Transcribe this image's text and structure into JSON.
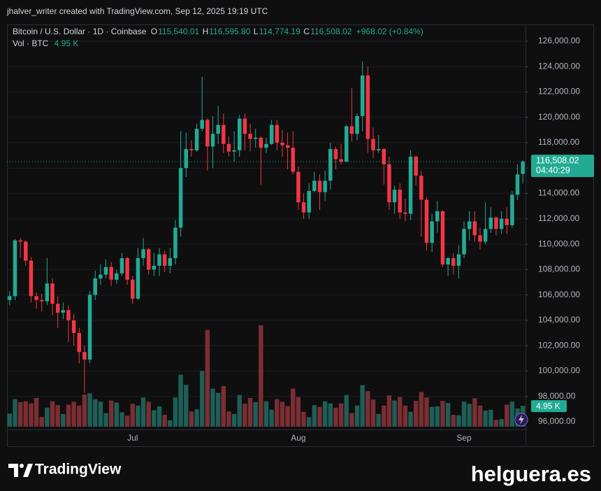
{
  "chart_data": {
    "type": "candlestick",
    "attribution": "jhalver_writer created with TradingView.com, Sep 12, 2025 19:19 UTC",
    "title": "Bitcoin / U.S. Dollar · 1D · Coinbase",
    "ohlc_legend": [
      {
        "key": "O",
        "label": "115,540.01"
      },
      {
        "key": "H",
        "label": "116,595.80"
      },
      {
        "key": "L",
        "label": "114,774.19"
      },
      {
        "key": "C",
        "label": "116,508.02"
      }
    ],
    "change_label": "+968.02 (+0.84%)",
    "countdown": "04:40:29",
    "up_color": "#22ab94",
    "down_color": "#f23645",
    "grid": true,
    "categories": [
      null,
      null,
      null,
      null,
      null,
      null,
      null,
      null,
      null,
      null,
      null,
      null,
      null,
      null,
      null,
      null,
      null,
      null,
      null,
      null,
      null,
      null,
      null,
      "Jul",
      null,
      null,
      null,
      null,
      null,
      null,
      null,
      null,
      null,
      null,
      null,
      null,
      null,
      null,
      null,
      null,
      null,
      null,
      null,
      null,
      null,
      null,
      null,
      null,
      null,
      null,
      null,
      null,
      null,
      null,
      "Aug",
      null,
      null,
      null,
      null,
      null,
      null,
      null,
      null,
      null,
      null,
      null,
      null,
      null,
      null,
      null,
      null,
      null,
      null,
      null,
      null,
      null,
      null,
      null,
      null,
      null,
      null,
      null,
      null,
      null,
      null,
      "Sep",
      null,
      null,
      null,
      null,
      null,
      null,
      null,
      null,
      null,
      null,
      null
    ],
    "open": [
      105600,
      105900,
      110300,
      110200,
      108700,
      105900,
      105600,
      105500,
      106900,
      105300,
      104600,
      104800,
      104000,
      103000,
      101500,
      100900,
      106000,
      107300,
      107600,
      108200,
      107200,
      107700,
      108900,
      107200,
      105700,
      108900,
      109600,
      108000,
      108300,
      109200,
      108300,
      108900,
      111300,
      116000,
      117500,
      117400,
      119100,
      119800,
      117700,
      118700,
      119400,
      117900,
      117300,
      117400,
      119900,
      118700,
      118300,
      118400,
      117600,
      117900,
      119400,
      118000,
      117800,
      117600,
      115700,
      113300,
      112500,
      114200,
      115000,
      114100,
      115000,
      117500,
      116700,
      116500,
      119300,
      118700,
      120100,
      123300,
      118300,
      117400,
      117500,
      116300,
      113300,
      114300,
      112500,
      112400,
      116900,
      115400,
      113500,
      110100,
      111800,
      112600,
      108400,
      108900,
      108300,
      109200,
      111200,
      111800,
      110700,
      110200,
      111200,
      112100,
      111200,
      112000,
      111500,
      113900,
      115540.01
    ],
    "high": [
      106300,
      110400,
      110500,
      110300,
      109000,
      106200,
      106100,
      108900,
      107300,
      105900,
      105400,
      105200,
      104500,
      103400,
      102000,
      106300,
      107900,
      108400,
      108800,
      108600,
      108000,
      109300,
      109000,
      107500,
      109700,
      110500,
      109700,
      109300,
      109700,
      109500,
      109700,
      111900,
      118900,
      118800,
      118200,
      119500,
      123200,
      119900,
      120100,
      120900,
      120300,
      118500,
      118900,
      120200,
      120300,
      119500,
      119100,
      118500,
      118400,
      119800,
      119800,
      119000,
      118800,
      118900,
      116100,
      114000,
      114800,
      115700,
      115500,
      115800,
      118000,
      117700,
      117900,
      119400,
      122300,
      120300,
      124400,
      124000,
      119200,
      118600,
      117600,
      116900,
      114600,
      114800,
      113600,
      117400,
      117000,
      115800,
      113700,
      112400,
      113400,
      112700,
      109000,
      109300,
      109900,
      111800,
      112600,
      112600,
      111300,
      113300,
      112900,
      112200,
      112600,
      112900,
      114200,
      116300,
      116595.8
    ],
    "low": [
      105200,
      105600,
      108900,
      108300,
      105400,
      104900,
      104700,
      105200,
      104400,
      103400,
      104100,
      102300,
      102000,
      100600,
      98300,
      100600,
      105600,
      106800,
      107300,
      106700,
      106900,
      107500,
      106800,
      105300,
      105600,
      108300,
      107600,
      107500,
      107500,
      107800,
      107700,
      108400,
      110600,
      115300,
      116900,
      117300,
      118900,
      115800,
      116000,
      117900,
      117200,
      116900,
      116500,
      116900,
      117400,
      117300,
      117600,
      114700,
      117200,
      117800,
      117400,
      116900,
      115900,
      115500,
      112700,
      112000,
      112000,
      114100,
      112700,
      113400,
      114300,
      115900,
      116300,
      116500,
      118100,
      118200,
      118900,
      117200,
      116800,
      117200,
      114700,
      112700,
      112400,
      112000,
      111800,
      111900,
      114600,
      110600,
      109500,
      109400,
      110900,
      108200,
      107500,
      107600,
      107300,
      108900,
      110300,
      110200,
      109600,
      110000,
      110900,
      110700,
      110800,
      110800,
      111300,
      113500,
      114774.19
    ],
    "close": [
      105900,
      110300,
      110200,
      108700,
      105900,
      105600,
      105500,
      106900,
      105300,
      104600,
      104800,
      104000,
      103000,
      101500,
      100900,
      106000,
      107300,
      107600,
      108200,
      107200,
      107700,
      108900,
      107200,
      105700,
      108900,
      109600,
      108000,
      108300,
      109200,
      108300,
      108900,
      111300,
      116000,
      117500,
      117400,
      119100,
      119800,
      117700,
      118700,
      119400,
      117900,
      117300,
      117400,
      119900,
      118700,
      118300,
      118400,
      117600,
      117900,
      119400,
      118000,
      117800,
      117600,
      115700,
      113300,
      112500,
      114200,
      115000,
      114100,
      115000,
      117500,
      116700,
      116500,
      119300,
      118700,
      120100,
      123300,
      118300,
      117400,
      117500,
      116300,
      113300,
      114300,
      112500,
      112400,
      116900,
      115400,
      113500,
      110100,
      111800,
      112600,
      108400,
      108900,
      108300,
      109200,
      111200,
      111800,
      110700,
      110200,
      111200,
      112100,
      111200,
      112000,
      111500,
      113900,
      115500,
      116508.02
    ],
    "volume": {
      "name": "Vol · BTC",
      "up_color": "#1d5f56",
      "down_color": "#7b2e33",
      "values": [
        3.1,
        6.5,
        5.8,
        6.0,
        5.5,
        6.8,
        2.3,
        4.5,
        6.0,
        5.1,
        3.0,
        5.2,
        5.9,
        5.0,
        7.6,
        7.9,
        6.5,
        5.9,
        3.2,
        6.2,
        5.7,
        3.4,
        2.6,
        5.4,
        5.0,
        6.9,
        5.9,
        3.9,
        4.8,
        2.8,
        1.5,
        6.9,
        12.3,
        9.9,
        3.6,
        4.1,
        13.2,
        22.9,
        9.0,
        8.0,
        9.6,
        3.6,
        3.0,
        7.5,
        5.4,
        6.8,
        5.8,
        24.0,
        6.0,
        4.0,
        6.5,
        5.9,
        4.9,
        9.0,
        7.0,
        3.5,
        2.2,
        5.1,
        4.7,
        6.0,
        5.5,
        4.5,
        5.5,
        7.5,
        3.2,
        5.0,
        9.8,
        8.4,
        6.4,
        3.0,
        5.0,
        7.4,
        6.2,
        7.0,
        5.0,
        3.5,
        6.1,
        8.2,
        6.9,
        4.7,
        4.8,
        6.1,
        5.6,
        2.8,
        2.7,
        5.9,
        5.4,
        6.7,
        5.0,
        3.8,
        4.0,
        1.6,
        1.8,
        5.2,
        5.9,
        4.3,
        4.95
      ],
      "value_labels": [
        null,
        null,
        null,
        null,
        null,
        null,
        null,
        null,
        null,
        null,
        null,
        null,
        null,
        null,
        null,
        null,
        null,
        null,
        null,
        null,
        null,
        null,
        null,
        null,
        null,
        null,
        null,
        null,
        null,
        null,
        null,
        null,
        null,
        null,
        null,
        null,
        null,
        null,
        null,
        null,
        null,
        null,
        null,
        null,
        null,
        null,
        null,
        null,
        null,
        null,
        null,
        null,
        null,
        null,
        null,
        null,
        null,
        null,
        null,
        null,
        null,
        null,
        null,
        null,
        null,
        null,
        null,
        null,
        null,
        null,
        null,
        null,
        null,
        null,
        null,
        null,
        null,
        null,
        null,
        null,
        null,
        null,
        null,
        null,
        null,
        null,
        null,
        null,
        null,
        null,
        null,
        null,
        null,
        null,
        null,
        null,
        "4.95 K"
      ]
    },
    "ylim": [
      94070,
      127320
    ],
    "yticks": [
      {
        "value": 96000,
        "label": "96,000.00"
      },
      {
        "value": 98000,
        "label": "98,000.00"
      },
      {
        "value": 100000,
        "label": "100,000.00"
      },
      {
        "value": 102000,
        "label": "102,000.00"
      },
      {
        "value": 104000,
        "label": "104,000.00"
      },
      {
        "value": 106000,
        "label": "106,000.00"
      },
      {
        "value": 108000,
        "label": "108,000.00"
      },
      {
        "value": 110000,
        "label": "110,000.00"
      },
      {
        "value": 112000,
        "label": "112,000.00"
      },
      {
        "value": 114000,
        "label": "114,000.00"
      },
      {
        "value": 116000,
        "label": "116,000.00"
      },
      {
        "value": 118000,
        "label": "118,000.00"
      },
      {
        "value": 120000,
        "label": "120,000.00"
      },
      {
        "value": 122000,
        "label": "122,000.00"
      },
      {
        "value": 124000,
        "label": "124,000.00"
      },
      {
        "value": 126000,
        "label": "126,000.00"
      }
    ]
  },
  "footer": {
    "brand": "TradingView",
    "watermark": "helguera.es"
  }
}
